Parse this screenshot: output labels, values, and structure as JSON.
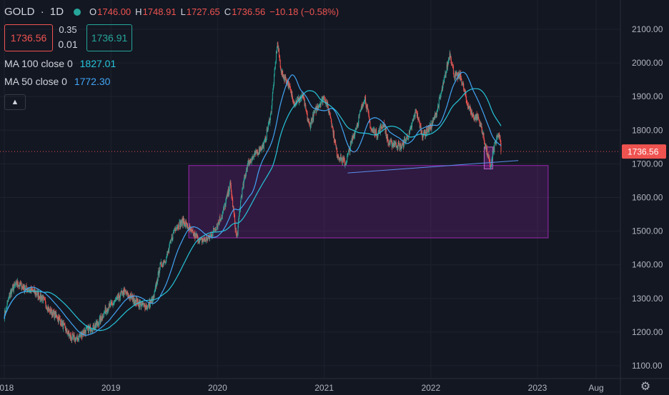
{
  "header": {
    "symbol": "GOLD",
    "separator": "·",
    "interval": "1D",
    "open_label": "O",
    "open": "1746.00",
    "high_label": "H",
    "high": "1748.91",
    "low_label": "L",
    "low": "1727.65",
    "close_label": "C",
    "close": "1736.56",
    "change": "−10.18 (−0.58%)"
  },
  "trade": {
    "sell": "1736.56",
    "spread_top": "0.35",
    "spread_bottom": "0.01",
    "buy": "1736.91"
  },
  "indicators": [
    {
      "label": "MA 100 close 0",
      "value": "1827.01",
      "color": "#26c6da"
    },
    {
      "label": "MA 50 close 0",
      "value": "1772.30",
      "color": "#42a5f5"
    }
  ],
  "colors": {
    "up": "#26a69a",
    "down": "#ef5350",
    "ma100": "#26c6da",
    "ma50": "#42a5f5",
    "zone": "#9c27b0",
    "trendline": "#5b8def"
  },
  "chart_data": {
    "type": "candlestick",
    "y_axis_side": "right",
    "ylim": [
      1060,
      2140
    ],
    "xlim": [
      2018.0,
      2023.75
    ],
    "y_ticks": [
      "2100.00",
      "2000.00",
      "1900.00",
      "1800.00",
      "1700.00",
      "1600.00",
      "1500.00",
      "1400.00",
      "1300.00",
      "1200.00",
      "1100.00"
    ],
    "x_ticks": [
      {
        "label": "2018",
        "x": 2018.0
      },
      {
        "label": "2019",
        "x": 2019.0
      },
      {
        "label": "2020",
        "x": 2020.0
      },
      {
        "label": "2021",
        "x": 2021.0
      },
      {
        "label": "2022",
        "x": 2022.0
      },
      {
        "label": "2023",
        "x": 2023.0
      },
      {
        "label": "Aug",
        "x": 2023.55
      }
    ],
    "last_price": "1736.56",
    "last_price_value": 1736.56,
    "price_anchors": [
      [
        2018.0,
        1250
      ],
      [
        2018.06,
        1320
      ],
      [
        2018.12,
        1345
      ],
      [
        2018.2,
        1330
      ],
      [
        2018.28,
        1320
      ],
      [
        2018.36,
        1300
      ],
      [
        2018.42,
        1265
      ],
      [
        2018.5,
        1245
      ],
      [
        2018.56,
        1215
      ],
      [
        2018.62,
        1185
      ],
      [
        2018.68,
        1178
      ],
      [
        2018.74,
        1200
      ],
      [
        2018.8,
        1210
      ],
      [
        2018.88,
        1225
      ],
      [
        2018.96,
        1270
      ],
      [
        2019.04,
        1290
      ],
      [
        2019.12,
        1320
      ],
      [
        2019.18,
        1305
      ],
      [
        2019.26,
        1285
      ],
      [
        2019.34,
        1275
      ],
      [
        2019.4,
        1300
      ],
      [
        2019.46,
        1395
      ],
      [
        2019.52,
        1420
      ],
      [
        2019.6,
        1510
      ],
      [
        2019.68,
        1530
      ],
      [
        2019.76,
        1495
      ],
      [
        2019.84,
        1470
      ],
      [
        2019.92,
        1480
      ],
      [
        2020.0,
        1520
      ],
      [
        2020.06,
        1565
      ],
      [
        2020.12,
        1640
      ],
      [
        2020.18,
        1475
      ],
      [
        2020.22,
        1600
      ],
      [
        2020.28,
        1700
      ],
      [
        2020.36,
        1730
      ],
      [
        2020.44,
        1760
      ],
      [
        2020.5,
        1850
      ],
      [
        2020.56,
        2060
      ],
      [
        2020.6,
        1970
      ],
      [
        2020.66,
        1940
      ],
      [
        2020.72,
        1880
      ],
      [
        2020.8,
        1900
      ],
      [
        2020.86,
        1810
      ],
      [
        2020.92,
        1860
      ],
      [
        2021.0,
        1900
      ],
      [
        2021.06,
        1840
      ],
      [
        2021.12,
        1730
      ],
      [
        2021.2,
        1700
      ],
      [
        2021.26,
        1770
      ],
      [
        2021.32,
        1830
      ],
      [
        2021.38,
        1900
      ],
      [
        2021.44,
        1800
      ],
      [
        2021.5,
        1790
      ],
      [
        2021.56,
        1820
      ],
      [
        2021.6,
        1760
      ],
      [
        2021.66,
        1760
      ],
      [
        2021.72,
        1750
      ],
      [
        2021.8,
        1790
      ],
      [
        2021.86,
        1860
      ],
      [
        2021.92,
        1785
      ],
      [
        2022.0,
        1810
      ],
      [
        2022.06,
        1860
      ],
      [
        2022.12,
        1940
      ],
      [
        2022.18,
        2030
      ],
      [
        2022.22,
        1960
      ],
      [
        2022.28,
        1960
      ],
      [
        2022.34,
        1880
      ],
      [
        2022.4,
        1840
      ],
      [
        2022.44,
        1840
      ],
      [
        2022.48,
        1800
      ],
      [
        2022.52,
        1740
      ],
      [
        2022.56,
        1690
      ],
      [
        2022.6,
        1760
      ],
      [
        2022.64,
        1790
      ],
      [
        2022.66,
        1737
      ]
    ],
    "moving_averages": [
      {
        "name": "MA 100 close 0",
        "period": 100
      },
      {
        "name": "MA 50 close 0",
        "period": 50
      }
    ],
    "support_zone": {
      "x_start": 2019.73,
      "x_end": 2023.1,
      "y_low": 1480,
      "y_high": 1695
    },
    "small_box": {
      "x_start": 2022.5,
      "x_end": 2022.58,
      "y_low": 1685,
      "y_high": 1750
    },
    "trendline": {
      "x1": 2021.22,
      "y1": 1673,
      "x2": 2022.82,
      "y2": 1710
    }
  }
}
